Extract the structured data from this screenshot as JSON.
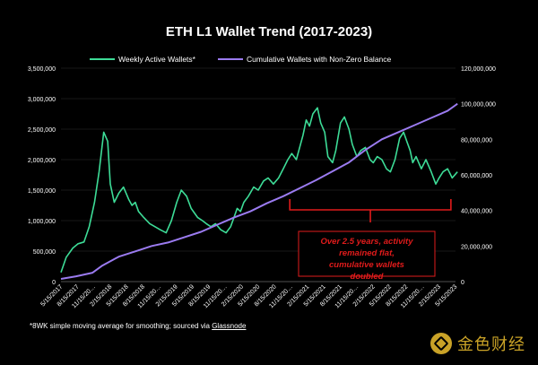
{
  "chart_data": {
    "type": "line",
    "title": "ETH L1 Wallet Trend (2017-2023)",
    "colors": {
      "background": "#000000",
      "weekly": "#3ddc97",
      "cumulative": "#9b7bf0",
      "annotation": "#e01b1b",
      "text": "#ffffff",
      "grid": "#333333"
    },
    "legend": {
      "placement": "top",
      "entries": [
        "Weekly Active Wallets*",
        "Cumulative Wallets with Non-Zero Balance"
      ]
    },
    "y_left": {
      "min": 0,
      "max": 3500000,
      "ticks": [
        0,
        500000,
        1000000,
        1500000,
        2000000,
        2500000,
        3000000,
        3500000
      ],
      "tick_labels": [
        "0",
        "500,000",
        "1,000,000",
        "1,500,000",
        "2,000,000",
        "2,500,000",
        "3,000,000",
        "3,500,000"
      ]
    },
    "y_right": {
      "min": 0,
      "max": 120000000,
      "ticks": [
        0,
        20000000,
        40000000,
        60000000,
        80000000,
        100000000,
        120000000
      ],
      "tick_labels": [
        "0",
        "20,000,000",
        "40,000,000",
        "60,000,000",
        "80,000,000",
        "100,000,000",
        "120,000,000"
      ]
    },
    "x_tick_labels": [
      "5/15/2017",
      "8/15/2017",
      "11/15/20…",
      "2/15/2018",
      "5/15/2018",
      "8/15/2018",
      "11/15/20…",
      "2/15/2019",
      "5/15/2019",
      "8/15/2019",
      "11/15/20…",
      "2/15/2020",
      "5/15/2020",
      "8/15/2020",
      "11/15/20…",
      "2/15/2021",
      "5/15/2021",
      "8/15/2021",
      "11/15/20…",
      "2/15/2022",
      "5/15/2022",
      "8/15/2022",
      "11/15/20…",
      "2/15/2023",
      "5/15/2023"
    ],
    "series": [
      {
        "name": "Weekly Active Wallets*",
        "axis": "left",
        "x": [
          2017.37,
          2017.45,
          2017.55,
          2017.63,
          2017.72,
          2017.8,
          2017.88,
          2017.95,
          2018.02,
          2018.08,
          2018.12,
          2018.18,
          2018.25,
          2018.32,
          2018.4,
          2018.45,
          2018.5,
          2018.55,
          2018.63,
          2018.72,
          2018.8,
          2018.88,
          2018.97,
          2019.05,
          2019.13,
          2019.2,
          2019.28,
          2019.35,
          2019.45,
          2019.52,
          2019.58,
          2019.65,
          2019.72,
          2019.8,
          2019.88,
          2019.95,
          2020.0,
          2020.05,
          2020.1,
          2020.15,
          2020.22,
          2020.3,
          2020.37,
          2020.45,
          2020.52,
          2020.6,
          2020.68,
          2020.75,
          2020.82,
          2020.88,
          2020.95,
          2021.0,
          2021.05,
          2021.1,
          2021.15,
          2021.2,
          2021.27,
          2021.32,
          2021.38,
          2021.43,
          2021.5,
          2021.55,
          2021.62,
          2021.68,
          2021.75,
          2021.8,
          2021.87,
          2021.93,
          2022.0,
          2022.07,
          2022.12,
          2022.18,
          2022.25,
          2022.32,
          2022.38,
          2022.45,
          2022.52,
          2022.58,
          2022.63,
          2022.68,
          2022.72,
          2022.77,
          2022.85,
          2022.92,
          2023.0,
          2023.07,
          2023.12,
          2023.18,
          2023.25,
          2023.32,
          2023.4
        ],
        "values": [
          150000,
          400000,
          550000,
          620000,
          650000,
          900000,
          1300000,
          1800000,
          2450000,
          2300000,
          1600000,
          1300000,
          1450000,
          1550000,
          1350000,
          1250000,
          1300000,
          1150000,
          1050000,
          950000,
          900000,
          850000,
          800000,
          1000000,
          1300000,
          1500000,
          1400000,
          1200000,
          1050000,
          1000000,
          950000,
          900000,
          950000,
          850000,
          800000,
          900000,
          1050000,
          1200000,
          1150000,
          1300000,
          1400000,
          1550000,
          1500000,
          1650000,
          1700000,
          1600000,
          1700000,
          1850000,
          2000000,
          2100000,
          2000000,
          2200000,
          2400000,
          2650000,
          2550000,
          2750000,
          2850000,
          2600000,
          2450000,
          2050000,
          1950000,
          2150000,
          2600000,
          2700000,
          2500000,
          2250000,
          2050000,
          2150000,
          2200000,
          2000000,
          1950000,
          2050000,
          2000000,
          1850000,
          1800000,
          2000000,
          2350000,
          2450000,
          2300000,
          2150000,
          1950000,
          2050000,
          1850000,
          2000000,
          1800000,
          1600000,
          1700000,
          1800000,
          1850000,
          1700000,
          1800000
        ]
      },
      {
        "name": "Cumulative Wallets with Non-Zero Balance",
        "axis": "right",
        "x": [
          2017.37,
          2017.6,
          2017.85,
          2018.0,
          2018.25,
          2018.5,
          2018.75,
          2019.0,
          2019.25,
          2019.5,
          2019.75,
          2020.0,
          2020.25,
          2020.5,
          2020.75,
          2021.0,
          2021.25,
          2021.5,
          2021.75,
          2022.0,
          2022.25,
          2022.5,
          2022.75,
          2023.0,
          2023.25,
          2023.4
        ],
        "values": [
          1500000,
          3000000,
          5000000,
          9000000,
          14000000,
          17000000,
          20000000,
          22000000,
          25000000,
          28000000,
          32000000,
          36000000,
          39500000,
          44000000,
          48000000,
          52500000,
          57000000,
          62000000,
          67000000,
          74000000,
          80000000,
          84000000,
          88000000,
          92000000,
          96000000,
          100000000
        ]
      }
    ],
    "annotation": {
      "text": "Over 2.5 years, activity remained flat, cumulative wallets doubled",
      "bracket_from": 2020.85,
      "bracket_to": 2023.3
    }
  },
  "footnote": {
    "text": "*8WK simple moving average for smoothing; sourced via ",
    "link": "Glassnode"
  },
  "watermark": {
    "text": "金色财经",
    "icon": "jinse-logo-icon"
  }
}
